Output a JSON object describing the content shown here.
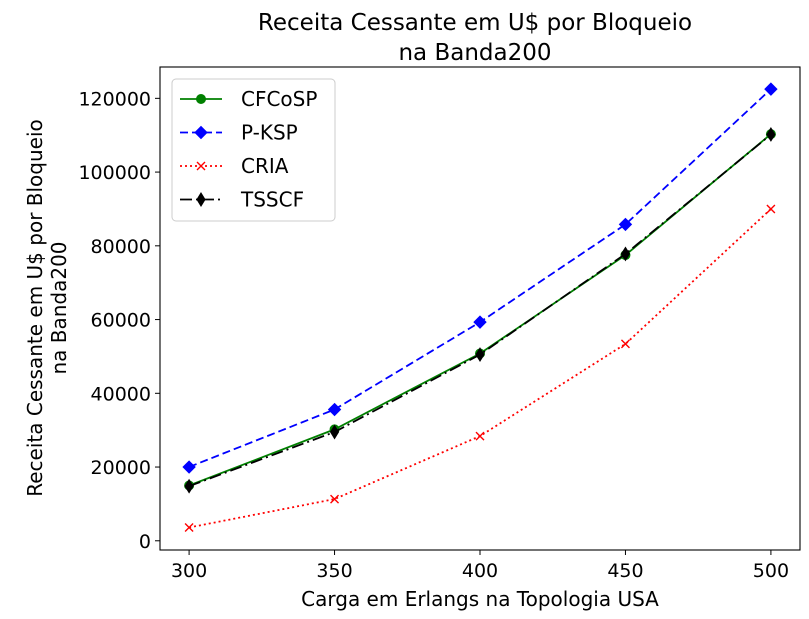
{
  "chart_data": {
    "type": "line",
    "title": [
      "Receita Cessante em U$ por Bloqueio",
      "na Banda200"
    ],
    "xlabel": "Carga em Erlangs na Topologia USA",
    "ylabel": [
      "Receita Cessante em U$ por Bloqueio",
      "na Banda200"
    ],
    "x": [
      300,
      350,
      400,
      450,
      500
    ],
    "xticks": [
      "300",
      "350",
      "400",
      "450",
      "500"
    ],
    "xlim": [
      290,
      510
    ],
    "yticks": [
      "0",
      "20000",
      "40000",
      "60000",
      "80000",
      "100000",
      "120000"
    ],
    "ytick_values": [
      0,
      20000,
      40000,
      60000,
      80000,
      100000,
      120000
    ],
    "ylim": [
      -2500,
      128500
    ],
    "grid": false,
    "legend_position": "top-left",
    "series": [
      {
        "name": "CFCoSP",
        "values": [
          15000,
          30200,
          50800,
          77500,
          110300
        ],
        "color": "#008000",
        "dash": "solid",
        "marker": "circle"
      },
      {
        "name": "P-KSP",
        "values": [
          20000,
          35600,
          59300,
          85800,
          122500
        ],
        "color": "#0000ff",
        "dash": "dashed",
        "marker": "diamond"
      },
      {
        "name": "CRIA",
        "values": [
          3600,
          11300,
          28400,
          53400,
          90000
        ],
        "color": "#ff0000",
        "dash": "dotted",
        "marker": "x"
      },
      {
        "name": "TSSCF",
        "values": [
          14800,
          29500,
          50500,
          77800,
          110200
        ],
        "color": "#000000",
        "dash": "dashdot",
        "marker": "thin-diamond"
      }
    ]
  }
}
